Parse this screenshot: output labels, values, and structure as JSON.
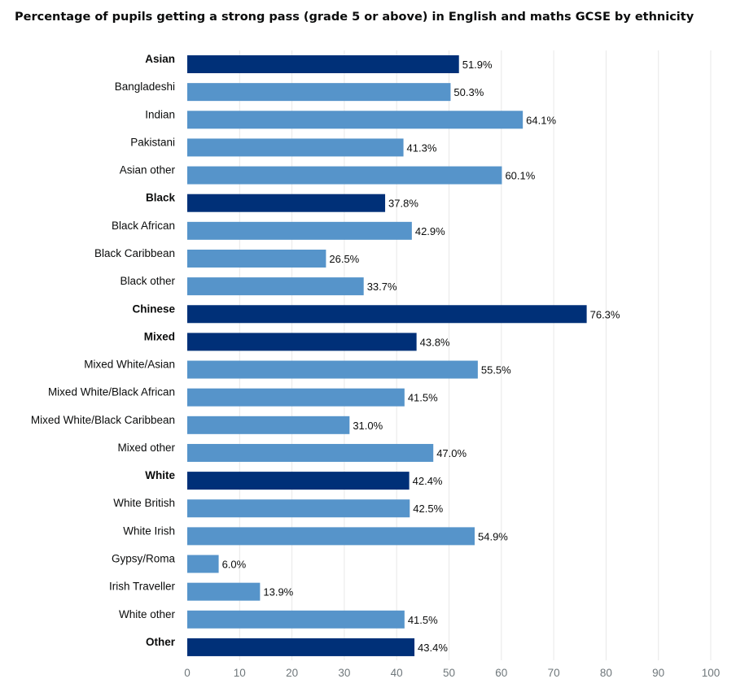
{
  "title": "Percentage of pupils getting a strong pass (grade 5 or above) in English and maths GCSE by ethnicity",
  "colors": {
    "group_bar": "#003078",
    "subgroup_bar": "#5694ca",
    "gridline": "#e8e8e8",
    "tick_text": "#6f777b",
    "text": "#0b0c0c"
  },
  "chart_data": {
    "type": "bar",
    "orientation": "horizontal",
    "title": "Percentage of pupils getting a strong pass (grade 5 or above) in English and maths GCSE by ethnicity",
    "xlabel": "",
    "ylabel": "",
    "xlim": [
      0,
      100
    ],
    "x_ticks": [
      0,
      10,
      20,
      30,
      40,
      50,
      60,
      70,
      80,
      90,
      100
    ],
    "grid": true,
    "categories": [
      "Asian",
      "Bangladeshi",
      "Indian",
      "Pakistani",
      "Asian other",
      "Black",
      "Black African",
      "Black Caribbean",
      "Black other",
      "Chinese",
      "Mixed",
      "Mixed White/Asian",
      "Mixed White/Black African",
      "Mixed White/Black Caribbean",
      "Mixed other",
      "White",
      "White British",
      "White Irish",
      "Gypsy/Roma",
      "Irish Traveller",
      "White other",
      "Other"
    ],
    "values": [
      51.9,
      50.3,
      64.1,
      41.3,
      60.1,
      37.8,
      42.9,
      26.5,
      33.7,
      76.3,
      43.8,
      55.5,
      41.5,
      31.0,
      47.0,
      42.4,
      42.5,
      54.9,
      6.0,
      13.9,
      41.5,
      43.4
    ],
    "value_labels": [
      "51.9%",
      "50.3%",
      "64.1%",
      "41.3%",
      "60.1%",
      "37.8%",
      "42.9%",
      "26.5%",
      "33.7%",
      "76.3%",
      "43.8%",
      "55.5%",
      "41.5%",
      "31.0%",
      "47.0%",
      "42.4%",
      "42.5%",
      "54.9%",
      "6.0%",
      "13.9%",
      "41.5%",
      "43.4%"
    ],
    "is_group": [
      true,
      false,
      false,
      false,
      false,
      true,
      false,
      false,
      false,
      true,
      true,
      false,
      false,
      false,
      false,
      true,
      false,
      false,
      false,
      false,
      false,
      true
    ]
  }
}
